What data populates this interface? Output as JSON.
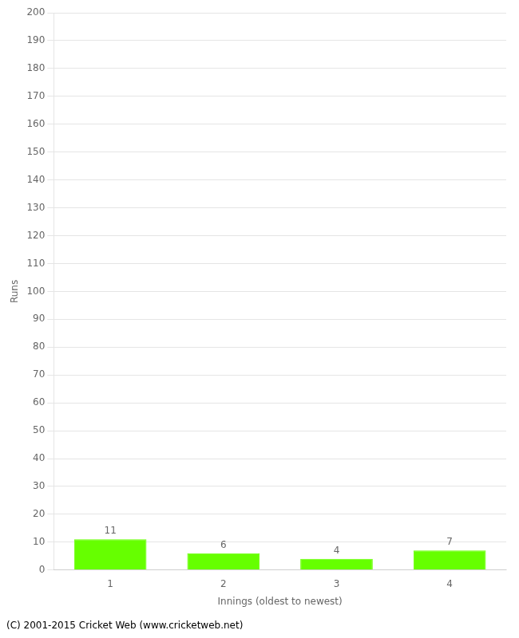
{
  "chart_data": {
    "type": "bar",
    "categories": [
      1,
      2,
      3,
      4
    ],
    "values": [
      11,
      6,
      4,
      7
    ],
    "color": "#66ff00",
    "data_labels": true,
    "xlabel": "Innings (oldest to newest)",
    "ylabel": "Runs",
    "ylim": [
      0,
      200
    ],
    "yticks": [
      0,
      10,
      20,
      30,
      40,
      50,
      60,
      70,
      80,
      90,
      100,
      110,
      120,
      130,
      140,
      150,
      160,
      170,
      180,
      190,
      200
    ],
    "grid": true,
    "annotations": [
      "(C) 2001-2015 Cricket Web (www.cricketweb.net)"
    ]
  }
}
